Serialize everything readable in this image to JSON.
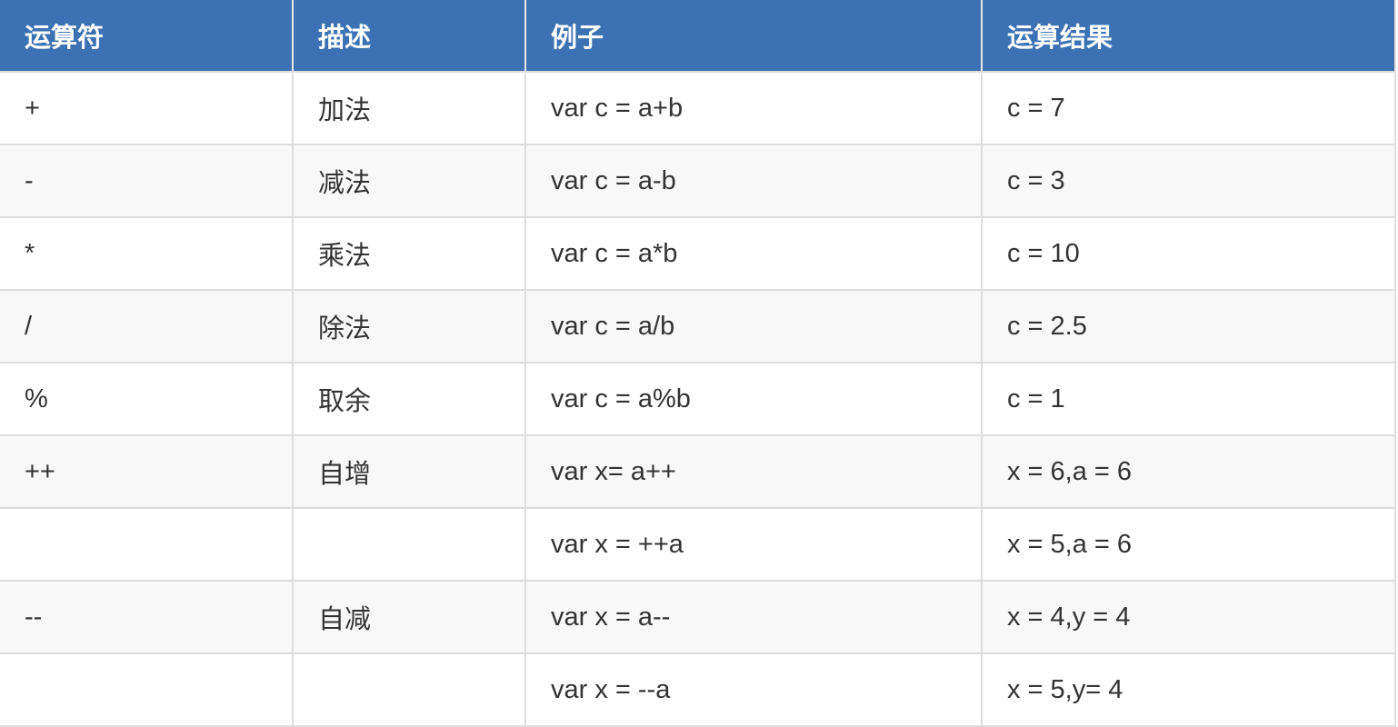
{
  "table": {
    "headers": [
      "运算符",
      "描述",
      "例子",
      "运算结果"
    ],
    "rows": [
      [
        "+",
        "加法",
        "var c = a+b",
        "c = 7"
      ],
      [
        "-",
        "减法",
        "var c = a-b",
        "c = 3"
      ],
      [
        "*",
        "乘法",
        "var c = a*b",
        "c = 10"
      ],
      [
        "/",
        "除法",
        "var c = a/b",
        "c = 2.5"
      ],
      [
        "%",
        "取余",
        "var c = a%b",
        "c = 1"
      ],
      [
        "++",
        "自增",
        "var x= a++",
        "x = 6,a = 6"
      ],
      [
        "",
        "",
        "var x = ++a",
        "x = 5,a = 6"
      ],
      [
        "--",
        "自减",
        "var x = a--",
        "x = 4,y = 4"
      ],
      [
        "",
        "",
        "var x = --a",
        "x = 5,y= 4"
      ]
    ]
  },
  "colors": {
    "header_bg": "#3c72b3",
    "header_text": "#ffffff",
    "border": "#dddddd",
    "alt_row": "#f8f8f8"
  }
}
